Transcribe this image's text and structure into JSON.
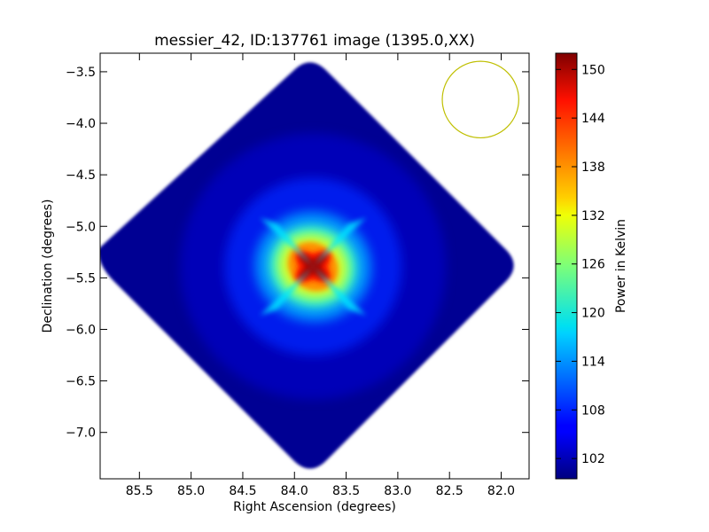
{
  "chart_data": {
    "type": "heatmap",
    "title": "messier_42, ID:137761 image (1395.0,XX)",
    "xlabel": "Right Ascension (degrees)",
    "ylabel": "Declination (degrees)",
    "xlim": [
      85.88,
      81.73
    ],
    "ylim": [
      -7.45,
      -3.32
    ],
    "x_ticks": [
      85.5,
      85.0,
      84.5,
      84.0,
      83.5,
      83.0,
      82.5,
      82.0
    ],
    "x_tick_labels": [
      "85.5",
      "85.0",
      "84.5",
      "84.0",
      "83.5",
      "83.0",
      "82.5",
      "82.0"
    ],
    "y_ticks": [
      -3.5,
      -4.0,
      -4.5,
      -5.0,
      -5.5,
      -6.0,
      -6.5,
      -7.0
    ],
    "y_tick_labels": [
      "−3.5",
      "−4.0",
      "−4.5",
      "−5.0",
      "−5.5",
      "−6.0",
      "−6.5",
      "−7.0"
    ],
    "grid": false,
    "colormap": "jet",
    "colorbar": {
      "label": "Power in Kelvin",
      "min": 99.5,
      "max": 152,
      "ticks": [
        102,
        108,
        114,
        120,
        126,
        132,
        138,
        144,
        150
      ],
      "tick_labels": [
        "102",
        "108",
        "114",
        "120",
        "126",
        "132",
        "138",
        "144",
        "150"
      ]
    },
    "image_region": {
      "shape": "diamond",
      "center_ra": 83.85,
      "center_dec": -5.38,
      "half_width_ra": 2.05,
      "half_height_dec": 2.05,
      "background_value": 100.5
    },
    "bright_source": {
      "center_ra": 83.82,
      "center_dec": -5.39,
      "peak_value": 152
    },
    "beam_circle": {
      "center_ra": 82.2,
      "center_dec": -3.77,
      "radius_deg": 0.37,
      "color": "#bfbf00"
    }
  }
}
